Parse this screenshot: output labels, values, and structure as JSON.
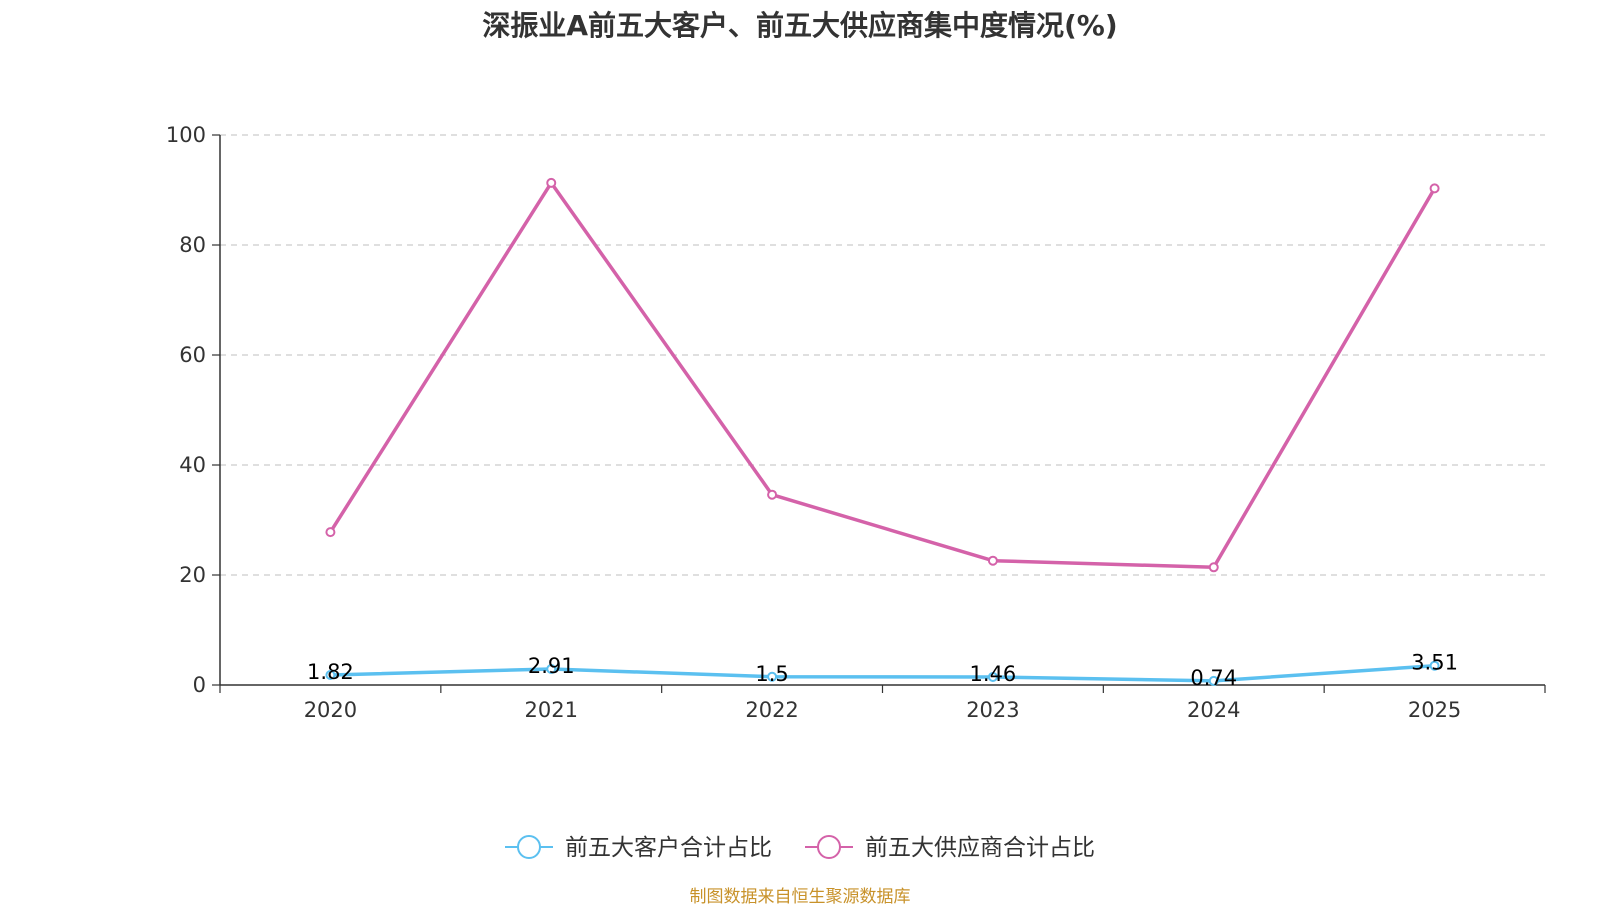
{
  "chart_data": {
    "type": "line",
    "title": "深振业A前五大客户、前五大供应商集中度情况(%)",
    "categories": [
      "2020",
      "2021",
      "2022",
      "2023",
      "2024",
      "2025"
    ],
    "series": [
      {
        "name": "前五大客户合计占比",
        "color": "#5bc0f0",
        "values": [
          1.82,
          2.91,
          1.5,
          1.46,
          0.74,
          3.51
        ],
        "show_labels": true
      },
      {
        "name": "前五大供应商合计占比",
        "color": "#d462a9",
        "values": [
          27.8,
          91.3,
          34.6,
          22.6,
          21.4,
          90.3
        ],
        "show_labels": false
      }
    ],
    "ylim": [
      0,
      100
    ],
    "yticks": [
      0,
      20,
      40,
      60,
      80,
      100
    ],
    "xlabel": "",
    "ylabel": "",
    "grid": true,
    "legend_position": "bottom"
  },
  "source_note": "制图数据来自恒生聚源数据库"
}
